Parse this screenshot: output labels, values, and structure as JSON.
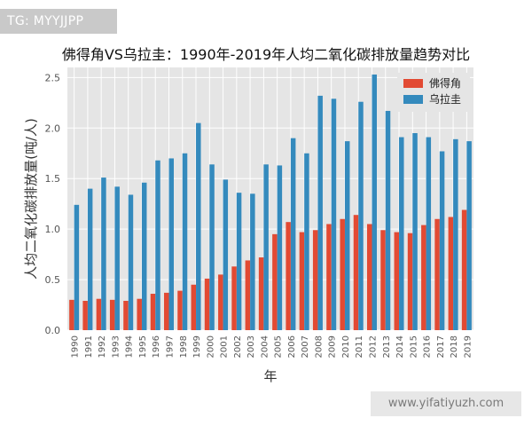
{
  "badge": {
    "text": "TG: MYYJJPP"
  },
  "watermark": {
    "text": "www.yifatiyuzh.com"
  },
  "colors": {
    "foshan": "#e24a33",
    "ulanqab": "#348abd",
    "plot_bg": "#e5e5e5",
    "grid": "#ffffff"
  },
  "chart_data": {
    "type": "bar",
    "title": "佛得角VS乌拉圭：1990年-2019年人均二氧化碳排放量趋势对比",
    "xlabel": "年",
    "ylabel": "人均二氧化碳排放量(吨/人)",
    "ylim": [
      0,
      2.6
    ],
    "yticks": [
      "0.0",
      "0.5",
      "1.0",
      "1.5",
      "2.0",
      "2.5"
    ],
    "legend_position": "top-right",
    "grid": true,
    "categories": [
      "1990",
      "1991",
      "1992",
      "1993",
      "1994",
      "1995",
      "1996",
      "1997",
      "1998",
      "1999",
      "2000",
      "2001",
      "2002",
      "2003",
      "2004",
      "2005",
      "2006",
      "2007",
      "2008",
      "2009",
      "2010",
      "2011",
      "2012",
      "2013",
      "2014",
      "2015",
      "2016",
      "2017",
      "2018",
      "2019"
    ],
    "series": [
      {
        "name": "佛得角",
        "color": "#e24a33",
        "values": [
          0.3,
          0.29,
          0.31,
          0.3,
          0.29,
          0.31,
          0.36,
          0.37,
          0.39,
          0.45,
          0.51,
          0.55,
          0.63,
          0.69,
          0.72,
          0.95,
          1.07,
          0.97,
          0.99,
          1.05,
          1.1,
          1.14,
          1.05,
          0.99,
          0.97,
          0.96,
          1.04,
          1.1,
          1.12,
          1.19
        ]
      },
      {
        "name": "乌拉圭",
        "color": "#348abd",
        "values": [
          1.24,
          1.4,
          1.51,
          1.42,
          1.34,
          1.46,
          1.68,
          1.7,
          1.75,
          2.05,
          1.64,
          1.49,
          1.36,
          1.35,
          1.64,
          1.63,
          1.9,
          1.75,
          2.32,
          2.29,
          1.87,
          2.26,
          2.53,
          2.17,
          1.91,
          1.95,
          1.91,
          1.77,
          1.89,
          1.87
        ]
      }
    ]
  }
}
